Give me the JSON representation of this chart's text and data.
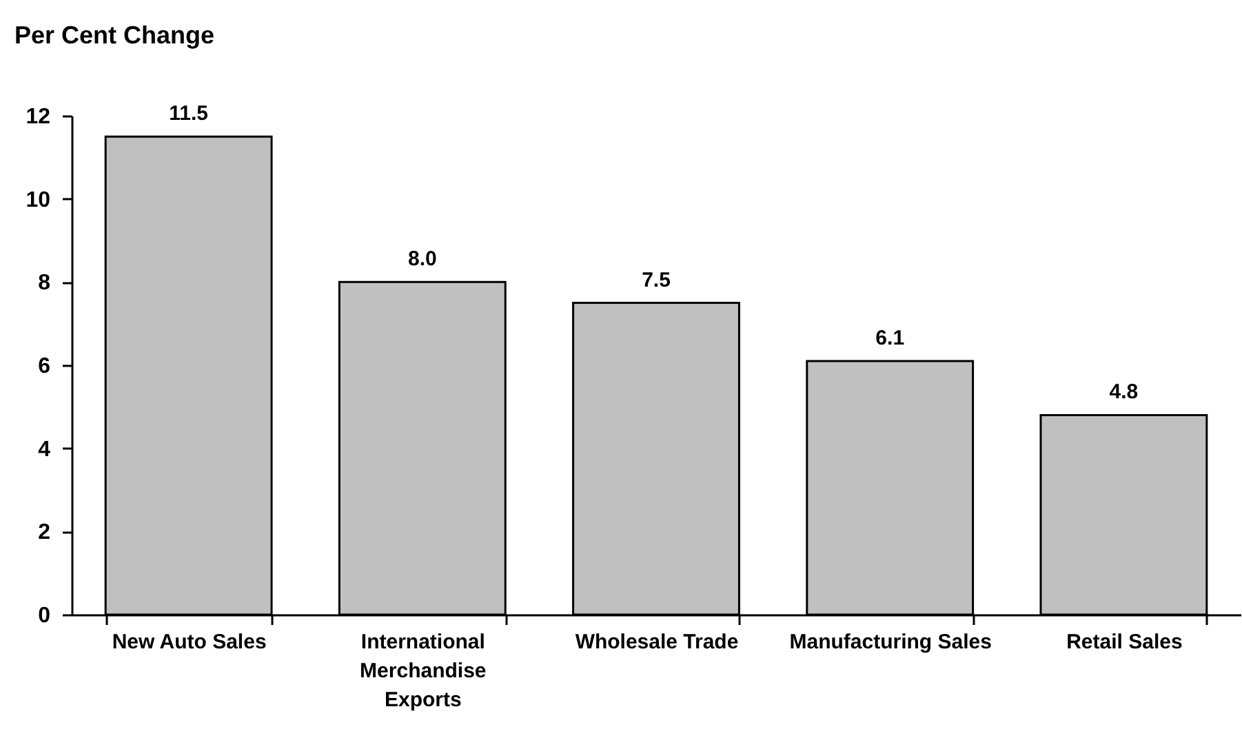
{
  "chart_data": {
    "type": "bar",
    "ylabel": "Per Cent Change",
    "categories": [
      "New Auto Sales",
      "International Merchandise Exports",
      "Wholesale Trade",
      "Manufacturing Sales",
      "Retail Sales"
    ],
    "values": [
      11.5,
      8.0,
      7.5,
      6.1,
      4.8
    ],
    "value_labels": [
      "11.5",
      "8.0",
      "7.5",
      "6.1",
      "4.8"
    ],
    "color": "#c0c0c0",
    "ylim": [
      0,
      12
    ],
    "yticks": [
      0,
      2,
      4,
      6,
      8,
      10,
      12
    ],
    "grid": false
  }
}
